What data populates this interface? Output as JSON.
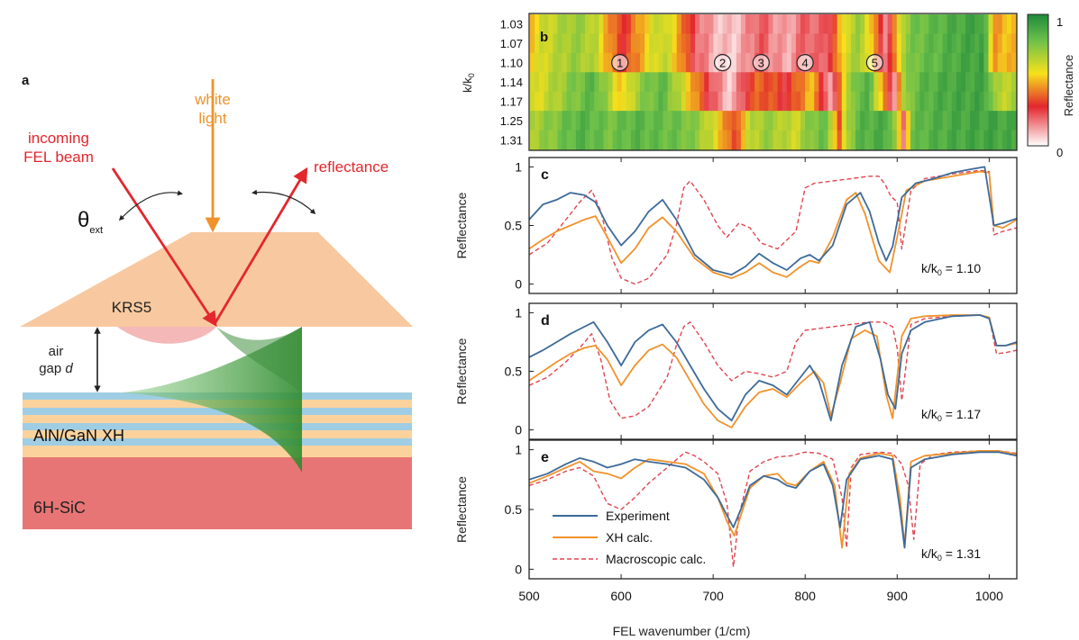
{
  "colors": {
    "experiment": "#3d6a99",
    "xh_calc": "#f0922b",
    "macro_calc": "#e0454f",
    "red_beam": "#e3272d",
    "white_light": "#f0922b",
    "prism": "#f8c9a0",
    "substrate": "#e87575",
    "layer_blue": "#9fcde3",
    "layer_orange": "#fbd29c",
    "evanescent": "#4aae4a"
  },
  "panel_a": {
    "label": "a",
    "white_light": [
      "white",
      "light"
    ],
    "incoming": [
      "incoming",
      "FEL beam"
    ],
    "reflectance": "reflectance",
    "theta_main": "θ",
    "theta_sub": "ext",
    "prism": "KRS5",
    "air_gap_line1": "air",
    "air_gap_line2a": "gap",
    "air_gap_line2b": "d",
    "xh": "AlN/GaN XH",
    "substrate": "6H-SiC"
  },
  "panel_b": {
    "label": "b",
    "ylabel_main": "k/k",
    "ylabel_sub": "0",
    "rows": [
      "1.03",
      "1.07",
      "1.10",
      "1.14",
      "1.17",
      "1.25",
      "1.31"
    ],
    "markers": [
      {
        "label": "1",
        "x": 598
      },
      {
        "label": "2",
        "x": 710
      },
      {
        "label": "3",
        "x": 752
      },
      {
        "label": "4",
        "x": 800
      },
      {
        "label": "5",
        "x": 876
      }
    ],
    "colorbar_title": "Reflectance",
    "colorbar_max": "1",
    "colorbar_min": "0"
  },
  "chart_data": [
    {
      "panel": "b",
      "type": "heatmap",
      "x_range": [
        500,
        1030
      ],
      "rows": [
        1.03,
        1.07,
        1.1,
        1.14,
        1.17,
        1.25,
        1.31
      ],
      "value_range": [
        0,
        1
      ],
      "title": ""
    },
    {
      "panel": "c",
      "type": "line",
      "label": "c",
      "annotation_main": "k/k",
      "annotation_sub": "0",
      "annotation_value": " = 1.10",
      "ylabel": "Reflectance",
      "xlim": [
        500,
        1030
      ],
      "ylim": [
        -0.08,
        1.08
      ],
      "yticks": [
        "0",
        "0.5",
        "1"
      ],
      "series": [
        {
          "name": "Experiment",
          "x": [
            500,
            515,
            530,
            545,
            560,
            572,
            585,
            600,
            615,
            630,
            645,
            660,
            680,
            700,
            720,
            735,
            750,
            765,
            780,
            795,
            805,
            815,
            830,
            845,
            860,
            870,
            880,
            888,
            895,
            905,
            920,
            940,
            960,
            980,
            995,
            1005,
            1015,
            1030
          ],
          "y": [
            0.55,
            0.68,
            0.72,
            0.78,
            0.76,
            0.7,
            0.5,
            0.33,
            0.45,
            0.62,
            0.72,
            0.55,
            0.25,
            0.12,
            0.08,
            0.15,
            0.26,
            0.18,
            0.12,
            0.22,
            0.25,
            0.2,
            0.33,
            0.68,
            0.78,
            0.62,
            0.35,
            0.2,
            0.32,
            0.74,
            0.86,
            0.9,
            0.95,
            0.98,
            1.0,
            0.5,
            0.52,
            0.56
          ]
        },
        {
          "name": "XH calc.",
          "x": [
            500,
            515,
            530,
            545,
            560,
            572,
            585,
            600,
            615,
            630,
            645,
            660,
            680,
            700,
            720,
            735,
            750,
            765,
            780,
            795,
            805,
            815,
            830,
            845,
            855,
            865,
            880,
            892,
            900,
            910,
            930,
            960,
            990,
            1000,
            1005,
            1015,
            1030
          ],
          "y": [
            0.3,
            0.38,
            0.45,
            0.5,
            0.55,
            0.58,
            0.4,
            0.18,
            0.3,
            0.48,
            0.57,
            0.45,
            0.22,
            0.1,
            0.05,
            0.1,
            0.18,
            0.1,
            0.06,
            0.15,
            0.2,
            0.18,
            0.4,
            0.72,
            0.78,
            0.6,
            0.2,
            0.1,
            0.4,
            0.8,
            0.88,
            0.92,
            0.96,
            0.95,
            0.5,
            0.48,
            0.55
          ]
        },
        {
          "name": "Macroscopic calc.",
          "x": [
            500,
            520,
            540,
            555,
            568,
            578,
            590,
            600,
            615,
            630,
            650,
            660,
            668,
            675,
            690,
            705,
            715,
            728,
            740,
            752,
            770,
            790,
            800,
            810,
            830,
            850,
            870,
            880,
            887,
            893,
            900,
            905,
            915,
            930,
            960,
            990,
            1000,
            1005,
            1015,
            1030
          ],
          "y": [
            0.25,
            0.35,
            0.55,
            0.7,
            0.8,
            0.62,
            0.22,
            0.05,
            0.0,
            0.05,
            0.25,
            0.5,
            0.82,
            0.88,
            0.72,
            0.5,
            0.4,
            0.52,
            0.48,
            0.35,
            0.3,
            0.45,
            0.82,
            0.86,
            0.88,
            0.9,
            0.92,
            0.92,
            0.85,
            0.75,
            0.7,
            0.3,
            0.8,
            0.9,
            0.94,
            0.97,
            0.96,
            0.42,
            0.45,
            0.48
          ]
        }
      ]
    },
    {
      "panel": "d",
      "type": "line",
      "label": "d",
      "annotation_main": "k/k",
      "annotation_sub": "0",
      "annotation_value": " = 1.17",
      "ylabel": "Reflectance",
      "xlim": [
        500,
        1030
      ],
      "ylim": [
        -0.08,
        1.08
      ],
      "yticks": [
        "0",
        "0.5",
        "1"
      ],
      "series": [
        {
          "name": "Experiment",
          "x": [
            500,
            515,
            530,
            545,
            560,
            570,
            585,
            600,
            615,
            630,
            645,
            660,
            675,
            690,
            705,
            720,
            735,
            750,
            765,
            780,
            795,
            805,
            815,
            828,
            840,
            855,
            870,
            882,
            890,
            898,
            905,
            915,
            930,
            960,
            990,
            1000,
            1008,
            1018,
            1030
          ],
          "y": [
            0.62,
            0.68,
            0.75,
            0.82,
            0.88,
            0.92,
            0.75,
            0.55,
            0.75,
            0.85,
            0.9,
            0.75,
            0.55,
            0.35,
            0.18,
            0.08,
            0.3,
            0.42,
            0.38,
            0.3,
            0.45,
            0.55,
            0.42,
            0.08,
            0.55,
            0.88,
            0.92,
            0.6,
            0.3,
            0.18,
            0.65,
            0.85,
            0.92,
            0.97,
            0.98,
            0.95,
            0.72,
            0.72,
            0.75
          ]
        },
        {
          "name": "XH calc.",
          "x": [
            500,
            515,
            530,
            545,
            560,
            572,
            585,
            600,
            615,
            630,
            645,
            660,
            675,
            690,
            705,
            720,
            735,
            750,
            765,
            780,
            795,
            810,
            820,
            828,
            838,
            850,
            865,
            878,
            888,
            895,
            905,
            915,
            930,
            960,
            990,
            1000,
            1008,
            1018,
            1030
          ],
          "y": [
            0.42,
            0.5,
            0.58,
            0.65,
            0.7,
            0.72,
            0.6,
            0.38,
            0.55,
            0.68,
            0.73,
            0.62,
            0.42,
            0.22,
            0.08,
            0.02,
            0.2,
            0.32,
            0.35,
            0.28,
            0.4,
            0.5,
            0.4,
            0.12,
            0.4,
            0.78,
            0.85,
            0.8,
            0.3,
            0.1,
            0.8,
            0.95,
            0.97,
            0.98,
            0.98,
            0.96,
            0.72,
            0.72,
            0.74
          ]
        },
        {
          "name": "Macroscopic calc.",
          "x": [
            500,
            520,
            540,
            555,
            568,
            578,
            588,
            600,
            615,
            630,
            650,
            660,
            668,
            675,
            690,
            705,
            720,
            735,
            750,
            765,
            780,
            790,
            800,
            810,
            830,
            850,
            870,
            885,
            895,
            900,
            905,
            915,
            930,
            960,
            990,
            1000,
            1008,
            1018,
            1030
          ],
          "y": [
            0.38,
            0.45,
            0.58,
            0.7,
            0.82,
            0.6,
            0.25,
            0.1,
            0.12,
            0.2,
            0.45,
            0.72,
            0.88,
            0.92,
            0.75,
            0.55,
            0.42,
            0.5,
            0.48,
            0.45,
            0.5,
            0.75,
            0.85,
            0.86,
            0.88,
            0.9,
            0.92,
            0.92,
            0.88,
            0.7,
            0.25,
            0.9,
            0.95,
            0.97,
            0.98,
            0.96,
            0.65,
            0.66,
            0.68
          ]
        }
      ]
    },
    {
      "panel": "e",
      "type": "line",
      "label": "e",
      "annotation_main": "k/k",
      "annotation_sub": "0",
      "annotation_value": " = 1.31",
      "ylabel": "Reflectance",
      "xlabel": "FEL wavenumber (1/cm)",
      "xlim": [
        500,
        1030
      ],
      "ylim": [
        -0.08,
        1.08
      ],
      "yticks": [
        "0",
        "0.5",
        "1"
      ],
      "xticks": [
        "500",
        "600",
        "700",
        "800",
        "900",
        "1000"
      ],
      "series": [
        {
          "name": "Experiment",
          "x": [
            500,
            520,
            540,
            555,
            570,
            585,
            600,
            615,
            630,
            650,
            670,
            690,
            705,
            715,
            722,
            730,
            740,
            755,
            770,
            780,
            790,
            805,
            820,
            830,
            838,
            845,
            860,
            880,
            895,
            903,
            908,
            915,
            930,
            960,
            990,
            1010,
            1030
          ],
          "y": [
            0.75,
            0.8,
            0.88,
            0.93,
            0.9,
            0.85,
            0.88,
            0.92,
            0.9,
            0.88,
            0.85,
            0.75,
            0.6,
            0.45,
            0.35,
            0.5,
            0.7,
            0.78,
            0.75,
            0.7,
            0.68,
            0.82,
            0.88,
            0.7,
            0.35,
            0.75,
            0.92,
            0.95,
            0.92,
            0.5,
            0.18,
            0.85,
            0.92,
            0.96,
            0.98,
            0.98,
            0.95
          ]
        },
        {
          "name": "XH calc.",
          "x": [
            500,
            520,
            540,
            555,
            570,
            585,
            600,
            615,
            630,
            650,
            670,
            690,
            705,
            715,
            723,
            730,
            740,
            755,
            770,
            780,
            790,
            805,
            820,
            832,
            840,
            848,
            860,
            880,
            895,
            903,
            908,
            915,
            930,
            960,
            990,
            1010,
            1030
          ],
          "y": [
            0.72,
            0.78,
            0.85,
            0.9,
            0.82,
            0.8,
            0.76,
            0.85,
            0.92,
            0.9,
            0.88,
            0.8,
            0.6,
            0.4,
            0.28,
            0.45,
            0.68,
            0.78,
            0.8,
            0.72,
            0.7,
            0.82,
            0.9,
            0.7,
            0.18,
            0.8,
            0.93,
            0.97,
            0.95,
            0.6,
            0.2,
            0.9,
            0.95,
            0.97,
            0.99,
            0.99,
            0.96
          ]
        },
        {
          "name": "Macroscopic calc.",
          "x": [
            500,
            520,
            540,
            555,
            570,
            585,
            600,
            615,
            630,
            650,
            665,
            670,
            680,
            690,
            705,
            715,
            722,
            728,
            740,
            755,
            770,
            785,
            800,
            815,
            830,
            840,
            845,
            850,
            860,
            880,
            895,
            905,
            912,
            918,
            925,
            940,
            960,
            990,
            1010,
            1030
          ],
          "y": [
            0.7,
            0.75,
            0.82,
            0.85,
            0.78,
            0.55,
            0.5,
            0.6,
            0.72,
            0.85,
            0.95,
            0.98,
            0.95,
            0.9,
            0.8,
            0.55,
            0.02,
            0.45,
            0.82,
            0.9,
            0.94,
            0.95,
            0.98,
            0.97,
            0.92,
            0.6,
            0.18,
            0.85,
            0.96,
            0.98,
            0.97,
            0.88,
            0.7,
            0.25,
            0.88,
            0.96,
            0.98,
            0.99,
            0.99,
            0.97
          ]
        }
      ]
    }
  ]
}
